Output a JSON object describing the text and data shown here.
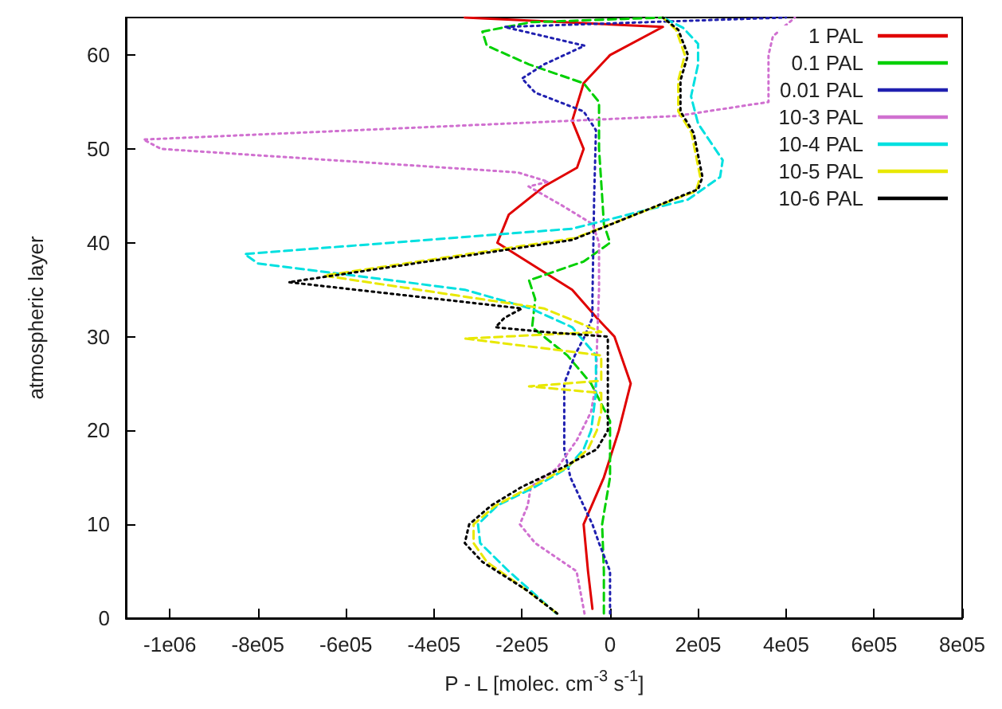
{
  "chart_data": {
    "type": "line",
    "xlabel": "P - L [molec. cm$^{-3}$ s$^{-1}$]",
    "ylabel": "atmospheric layer",
    "xlim": [
      -1100000,
      800000
    ],
    "xticks": [
      {
        "value": -1000000,
        "label": "-1e06"
      },
      {
        "value": -800000,
        "label": "-8e05"
      },
      {
        "value": -600000,
        "label": "-6e05"
      },
      {
        "value": -400000,
        "label": "-4e05"
      },
      {
        "value": -200000,
        "label": "-2e05"
      },
      0,
      {
        "value": 200000,
        "label": "2e05"
      },
      {
        "value": 400000,
        "label": "4e05"
      },
      {
        "value": 600000,
        "label": "6e05"
      },
      {
        "value": 800000,
        "label": "8e05"
      }
    ],
    "ylim": [
      0,
      64
    ],
    "yticks": [
      0,
      10,
      20,
      30,
      40,
      50,
      60
    ],
    "grid": false,
    "legend": "top right",
    "marker": "none",
    "series": [
      {
        "name": "1 PAL",
        "color": "#e00000",
        "line_style": "solid",
        "x": [
          -40000,
          -50000,
          -60000,
          -14000,
          20000,
          47000,
          10000,
          -30000,
          -86000,
          -256000,
          -230000,
          -150000,
          -75000,
          -60000,
          -86000,
          -60000,
          0,
          120000,
          -330000
        ],
        "values": [
          1,
          5,
          10,
          15,
          20,
          25,
          30,
          32,
          35,
          40,
          43,
          46,
          48,
          50,
          53,
          57,
          60,
          63,
          64
        ]
      },
      {
        "name": "0.1 PAL",
        "color": "#00d000",
        "line_style": "dashed",
        "x": [
          -14000,
          -14000,
          -18000,
          0,
          0,
          0,
          -43000,
          -97000,
          -177000,
          -170000,
          -184000,
          -60000,
          0,
          -14000,
          -18000,
          -25000,
          -25000,
          -60000,
          -184000,
          -280000,
          -290000,
          -180000,
          120000
        ],
        "values": [
          0.5,
          5,
          10,
          15,
          18,
          21,
          25,
          28,
          31,
          34,
          36,
          38,
          40,
          42,
          45,
          50,
          55,
          57,
          59,
          61,
          62.5,
          63.5,
          64
        ]
      },
      {
        "name": "0.01 PAL",
        "color": "#2020b0",
        "line_style": "dotted",
        "x": [
          0,
          0,
          -25000,
          -40000,
          -60000,
          -90000,
          -104000,
          -104000,
          -104000,
          -80000,
          -58000,
          -40000,
          -40000,
          -36000,
          -32000,
          -60000,
          -170000,
          -200000,
          -150000,
          -58000,
          -240000,
          400000
        ],
        "values": [
          0.5,
          5,
          8,
          10,
          12,
          15,
          18,
          22,
          25,
          28,
          30,
          32,
          34,
          45,
          52,
          54,
          56,
          57.5,
          59,
          61,
          63,
          64
        ]
      },
      {
        "name": "10-3 PAL",
        "color": "#d070d0",
        "line_style": "dotted",
        "x": [
          -58000,
          -76000,
          -170000,
          -205000,
          -187000,
          -180000,
          -120000,
          -75000,
          -43000,
          -32000,
          -29000,
          -25000,
          -25000,
          -40000,
          -110000,
          -185000,
          -140000,
          -210000,
          -1020000,
          -1060000,
          -330000,
          150000,
          360000,
          360000,
          370000,
          420000
        ],
        "values": [
          0.5,
          5,
          8,
          10,
          12,
          14,
          16,
          19,
          22,
          25,
          30,
          35,
          40,
          42,
          44,
          46,
          46.5,
          47.5,
          50,
          51,
          52.5,
          53.5,
          55,
          60,
          62,
          64
        ]
      },
      {
        "name": "10-4 PAL",
        "color": "#00e0e0",
        "line_style": "dashed",
        "x": [
          -122000,
          -158000,
          -230000,
          -295000,
          -300000,
          -256000,
          -170000,
          -97000,
          -60000,
          -43000,
          -32000,
          -32000,
          -86000,
          -180000,
          -330000,
          -800000,
          -830000,
          -86000,
          177000,
          250000,
          256000,
          200000,
          184000,
          200000,
          200000,
          166000,
          120000
        ],
        "values": [
          0.5,
          2,
          5,
          8,
          10,
          12,
          14,
          16,
          18,
          20,
          24,
          28,
          31,
          33,
          35,
          37.8,
          38.8,
          41.5,
          44.6,
          47,
          48.8,
          52.7,
          55.6,
          59,
          61.2,
          62.9,
          64
        ]
      },
      {
        "name": "10-5 PAL",
        "color": "#e8e800",
        "line_style": "dashed",
        "x": [
          -120000,
          -190000,
          -280000,
          -310000,
          -310000,
          -260000,
          -180000,
          -100000,
          -50000,
          -30000,
          -20000,
          -20000,
          -184000,
          -20000,
          -20000,
          -330000,
          -20000,
          -150000,
          -650000,
          -80000,
          195000,
          205000,
          185000,
          155000,
          155000,
          170000,
          150000,
          120000
        ],
        "values": [
          0.5,
          3,
          6,
          8,
          10,
          12,
          14,
          16,
          18,
          20,
          22,
          24,
          24.7,
          25.3,
          28,
          29.8,
          30.5,
          33,
          36.5,
          40.5,
          45.5,
          47,
          51.7,
          54,
          57.3,
          60,
          62.7,
          64
        ]
      },
      {
        "name": "10-6 PAL",
        "color": "#000000",
        "line_style": "dotted",
        "x": [
          -120000,
          -190000,
          -290000,
          -330000,
          -320000,
          -270000,
          -200000,
          -110000,
          -30000,
          -5000,
          -5000,
          -5000,
          -5000,
          -150000,
          -260000,
          -240000,
          -200000,
          -730000,
          -86000,
          200000,
          210000,
          190000,
          160000,
          160000,
          177000,
          155000,
          120000
        ],
        "values": [
          0.5,
          3,
          6,
          8,
          10,
          12,
          14,
          16,
          18,
          20,
          24,
          28,
          30,
          30.5,
          31,
          32,
          33,
          35.8,
          40.3,
          45.7,
          47,
          51.7,
          54,
          57.3,
          60,
          62.7,
          64
        ]
      }
    ]
  }
}
